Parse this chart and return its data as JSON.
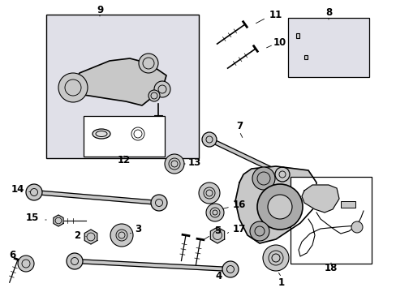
{
  "bg_color": "#ffffff",
  "line_color": "#000000",
  "box_fill_gray": "#e0e0e8",
  "box_fill_white": "#f5f5f5",
  "part_gray": "#c8c8c8",
  "figsize": [
    4.89,
    3.6
  ],
  "dpi": 100
}
